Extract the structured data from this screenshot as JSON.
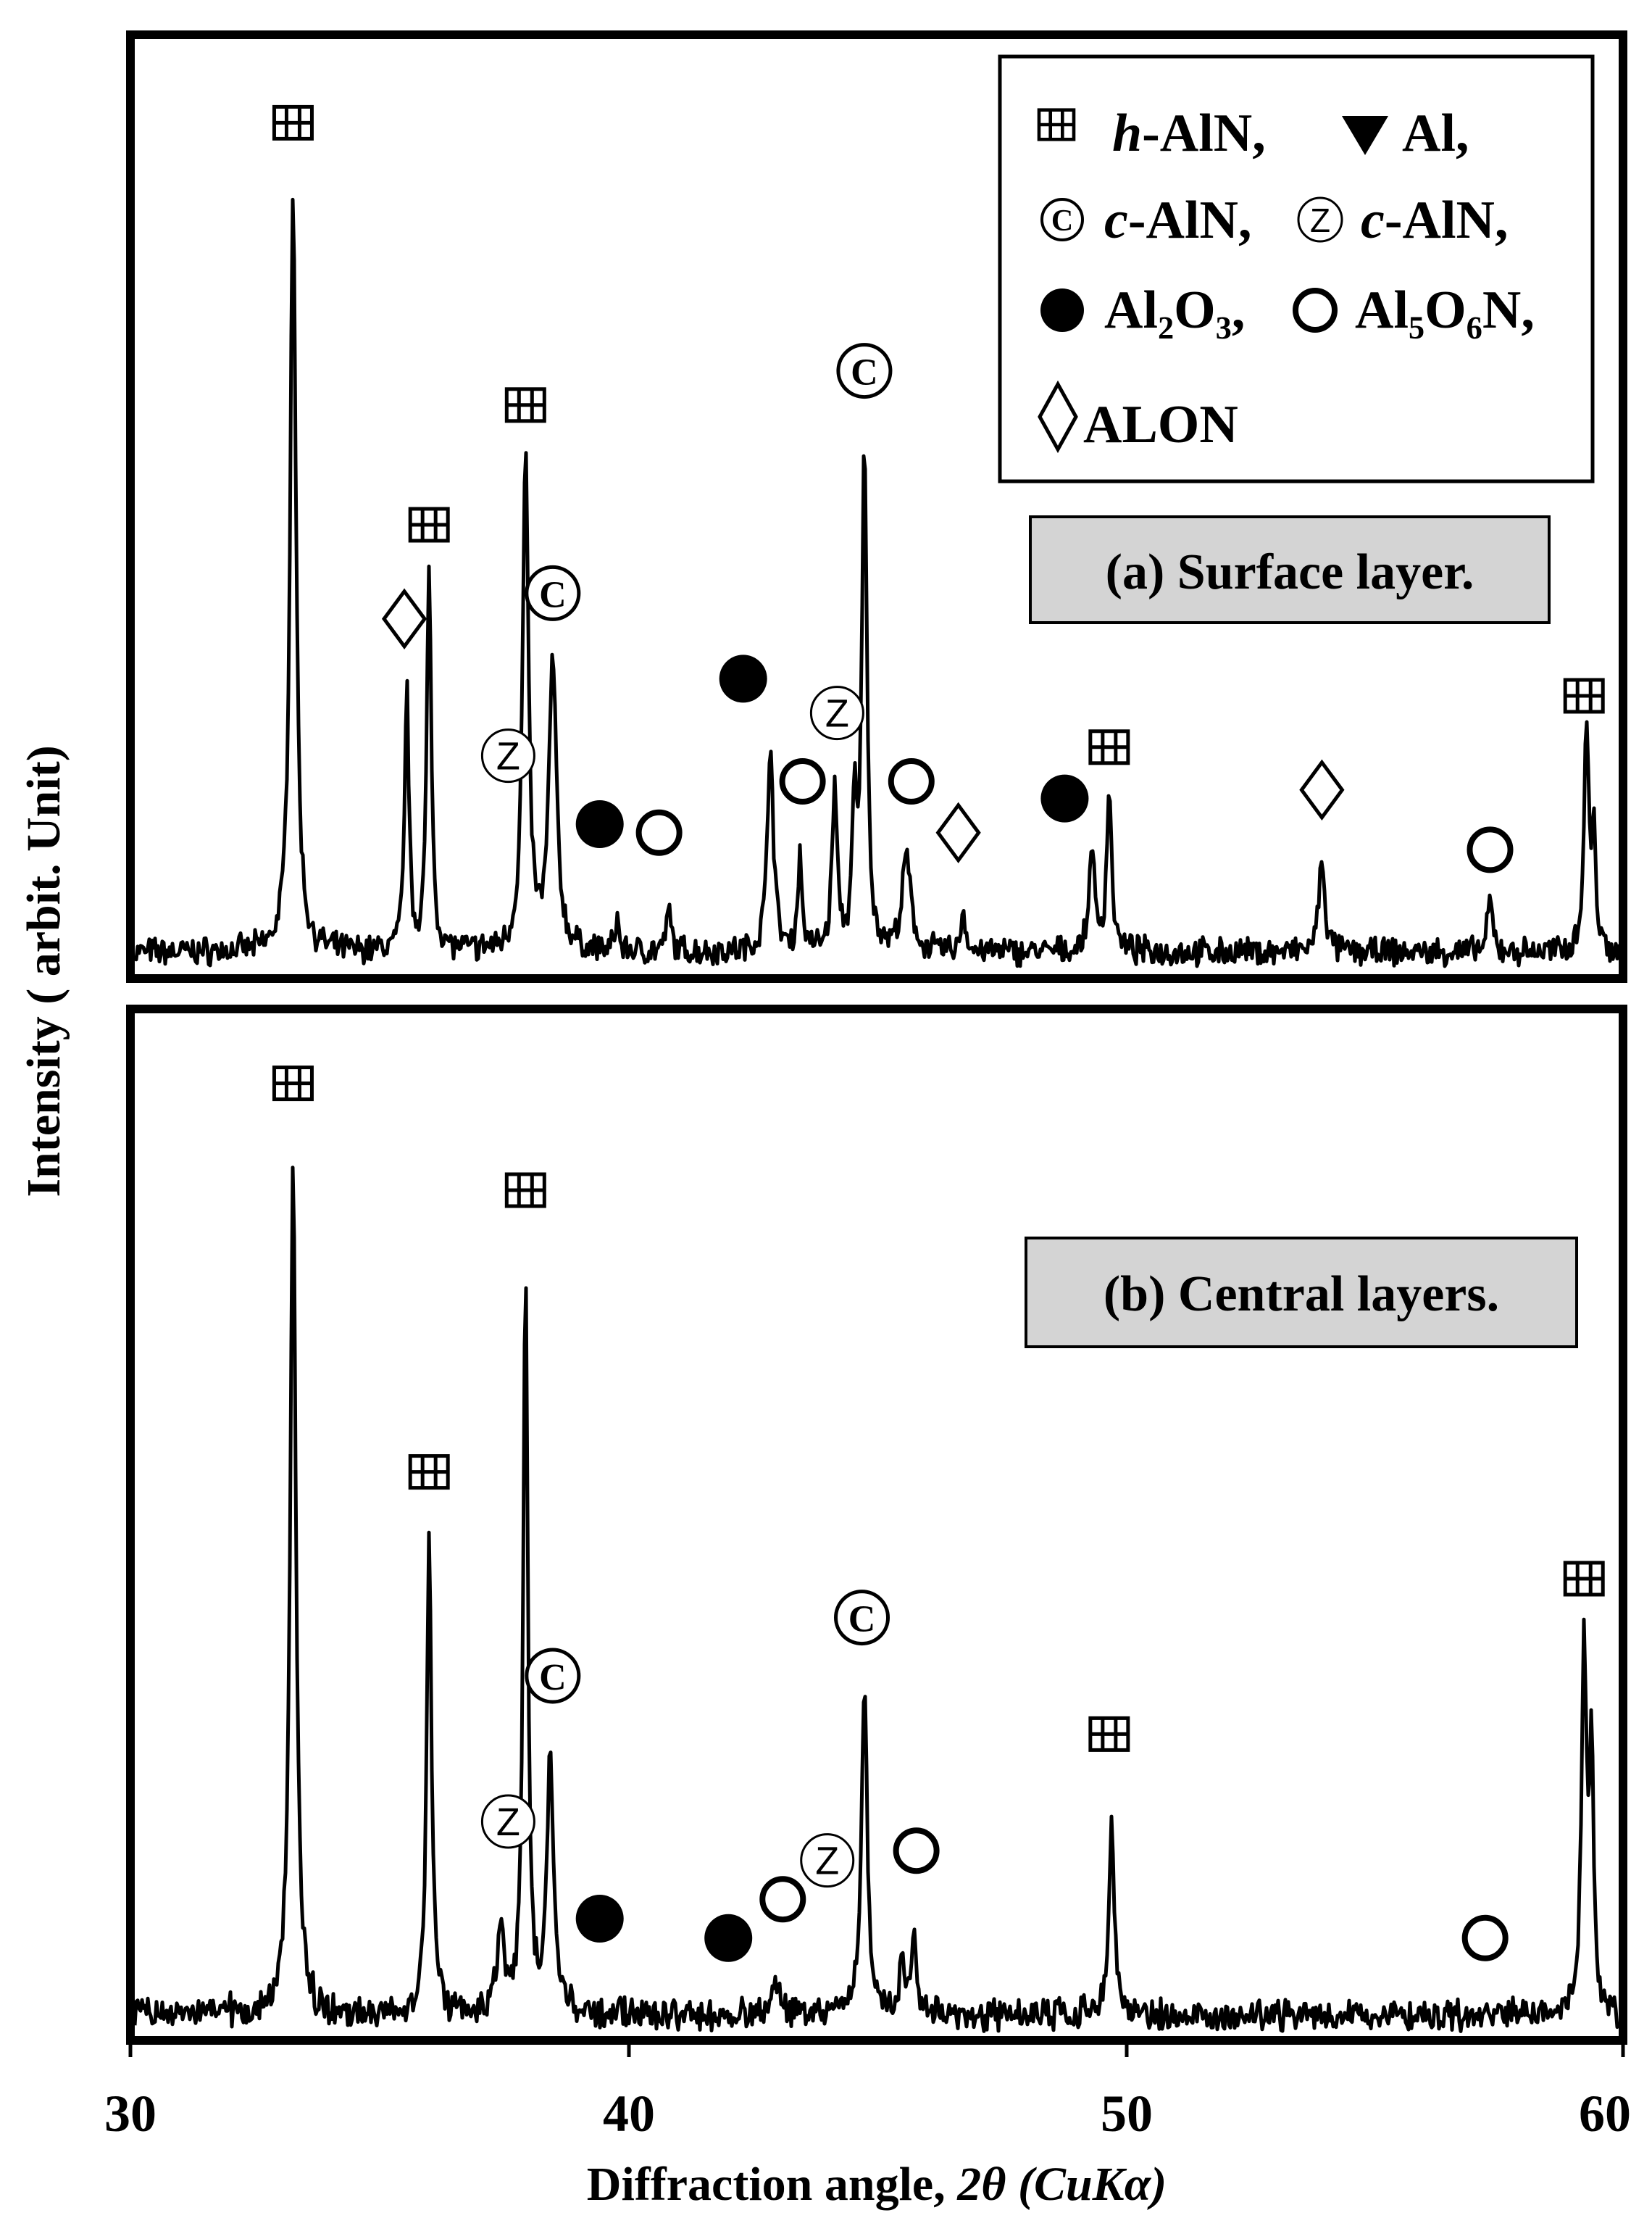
{
  "chart_data": [
    {
      "type": "line",
      "title": "(a) Surface layer.",
      "xlabel": "Diffraction angle, 2θ (CuKα)",
      "ylabel": "Intensity ( arbit. Unit)",
      "xlim": [
        30,
        60
      ],
      "ylim": [
        0,
        100
      ],
      "peaks": [
        {
          "x": 33.2,
          "y": 90,
          "w": 0.07
        },
        {
          "x": 35.5,
          "y": 31,
          "w": 0.05
        },
        {
          "x": 35.95,
          "y": 44,
          "w": 0.055
        },
        {
          "x": 37.9,
          "y": 58,
          "w": 0.07
        },
        {
          "x": 38.45,
          "y": 34,
          "w": 0.09
        },
        {
          "x": 39.75,
          "y": 4,
          "w": 0.04
        },
        {
          "x": 40.8,
          "y": 5,
          "w": 0.05
        },
        {
          "x": 42.85,
          "y": 25,
          "w": 0.07
        },
        {
          "x": 43.45,
          "y": 11,
          "w": 0.05
        },
        {
          "x": 44.15,
          "y": 19,
          "w": 0.06
        },
        {
          "x": 44.55,
          "y": 16,
          "w": 0.05
        },
        {
          "x": 44.75,
          "y": 60,
          "w": 0.06
        },
        {
          "x": 45.6,
          "y": 11,
          "w": 0.1
        },
        {
          "x": 46.75,
          "y": 5,
          "w": 0.05
        },
        {
          "x": 49.35,
          "y": 13,
          "w": 0.06
        },
        {
          "x": 49.7,
          "y": 19,
          "w": 0.06
        },
        {
          "x": 54.0,
          "y": 11,
          "w": 0.07
        },
        {
          "x": 57.4,
          "y": 6,
          "w": 0.06
        },
        {
          "x": 59.35,
          "y": 26,
          "w": 0.06
        },
        {
          "x": 59.5,
          "y": 12,
          "w": 0.05
        }
      ],
      "markers": [
        {
          "phase": "h-AlN",
          "x": 33.2,
          "y": 97
        },
        {
          "phase": "ALON",
          "x": 35.45,
          "y": 39
        },
        {
          "phase": "h-AlN",
          "x": 35.95,
          "y": 50
        },
        {
          "phase": "h-AlN",
          "x": 37.9,
          "y": 64
        },
        {
          "phase": "c-AlN (C)",
          "x": 38.45,
          "y": 42
        },
        {
          "phase": "c-AlN (Z)",
          "x": 37.55,
          "y": 23
        },
        {
          "phase": "Al2O3",
          "x": 39.4,
          "y": 15
        },
        {
          "phase": "Al5O6N",
          "x": 40.6,
          "y": 14
        },
        {
          "phase": "Al2O3",
          "x": 42.3,
          "y": 32
        },
        {
          "phase": "Al5O6N",
          "x": 43.5,
          "y": 20
        },
        {
          "phase": "c-AlN (Z)",
          "x": 44.2,
          "y": 28
        },
        {
          "phase": "c-AlN (C)",
          "x": 44.75,
          "y": 68
        },
        {
          "phase": "Al5O6N",
          "x": 45.7,
          "y": 20
        },
        {
          "phase": "ALON",
          "x": 46.65,
          "y": 14
        },
        {
          "phase": "Al2O3",
          "x": 48.8,
          "y": 18
        },
        {
          "phase": "h-AlN",
          "x": 49.7,
          "y": 24
        },
        {
          "phase": "ALON",
          "x": 54.0,
          "y": 19
        },
        {
          "phase": "Al5O6N",
          "x": 57.4,
          "y": 12
        },
        {
          "phase": "h-AlN",
          "x": 59.3,
          "y": 30
        }
      ]
    },
    {
      "type": "line",
      "title": "(b) Central layers.",
      "xlabel": "Diffraction angle, 2θ (CuKα)",
      "ylabel": "Intensity ( arbit. Unit)",
      "xlim": [
        30,
        60
      ],
      "ylim": [
        0,
        100
      ],
      "peaks": [
        {
          "x": 31.8,
          "y": 2,
          "w": 0.08
        },
        {
          "x": 33.2,
          "y": 88,
          "w": 0.07
        },
        {
          "x": 35.95,
          "y": 49,
          "w": 0.06
        },
        {
          "x": 37.4,
          "y": 9,
          "w": 0.08
        },
        {
          "x": 37.9,
          "y": 76,
          "w": 0.055
        },
        {
          "x": 38.4,
          "y": 27,
          "w": 0.08
        },
        {
          "x": 43.0,
          "y": 4,
          "w": 0.08
        },
        {
          "x": 44.75,
          "y": 34,
          "w": 0.07
        },
        {
          "x": 45.5,
          "y": 6,
          "w": 0.05
        },
        {
          "x": 45.75,
          "y": 9,
          "w": 0.06
        },
        {
          "x": 49.75,
          "y": 21,
          "w": 0.06
        },
        {
          "x": 59.3,
          "y": 37,
          "w": 0.06
        },
        {
          "x": 59.45,
          "y": 27,
          "w": 0.05
        }
      ],
      "markers": [
        {
          "phase": "h-AlN",
          "x": 33.2,
          "y": 96
        },
        {
          "phase": "h-AlN",
          "x": 35.95,
          "y": 56
        },
        {
          "phase": "h-AlN",
          "x": 37.9,
          "y": 85
        },
        {
          "phase": "c-AlN (C)",
          "x": 38.45,
          "y": 35
        },
        {
          "phase": "c-AlN (Z)",
          "x": 37.55,
          "y": 20
        },
        {
          "phase": "Al2O3",
          "x": 39.4,
          "y": 10
        },
        {
          "phase": "Al2O3",
          "x": 42.0,
          "y": 8
        },
        {
          "phase": "Al5O6N",
          "x": 43.1,
          "y": 12
        },
        {
          "phase": "c-AlN (Z)",
          "x": 44.0,
          "y": 16
        },
        {
          "phase": "c-AlN (C)",
          "x": 44.7,
          "y": 41
        },
        {
          "phase": "Al5O6N",
          "x": 45.8,
          "y": 17
        },
        {
          "phase": "h-AlN",
          "x": 49.7,
          "y": 29
        },
        {
          "phase": "Al5O6N",
          "x": 57.3,
          "y": 8
        },
        {
          "phase": "h-AlN",
          "x": 59.3,
          "y": 45
        }
      ]
    }
  ],
  "axis": {
    "ylabel": "Intensity ( arbit. Unit)",
    "xlabel_main": "Diffraction angle, ",
    "xlabel_italic": "2θ  (CuKα)",
    "ticks": [
      "30",
      "40",
      "50",
      "60"
    ]
  },
  "legend": {
    "h_prefix": "h",
    "h_suffix": "-AlN,",
    "al": "Al,",
    "c1_prefix": "c",
    "c1_suffix": "-AlN,",
    "c2_prefix": "c",
    "c2_suffix": "-AlN,",
    "al2o3": "Al₂O₃,",
    "al5o6n": "Al₅O₆N,",
    "alon": "ALON"
  },
  "panel_a_label": "(a) Surface layer.",
  "panel_b_label": "(b) Central layers.",
  "symbols": {
    "c": "C",
    "z": "Z"
  }
}
